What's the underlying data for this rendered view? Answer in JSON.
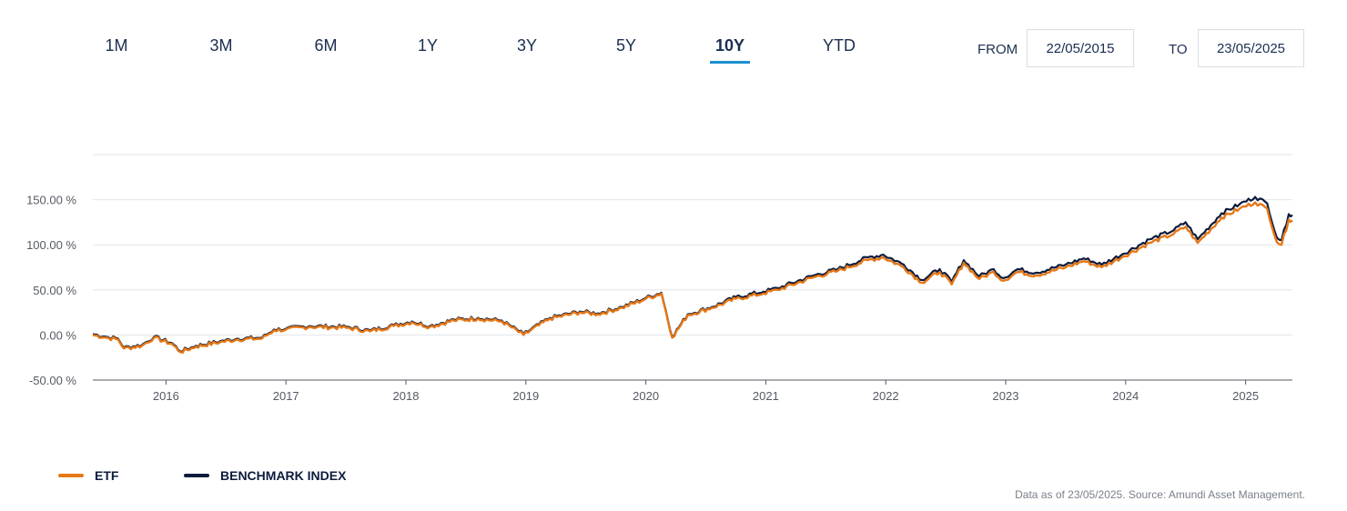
{
  "periods": {
    "tabs": [
      {
        "label": "1M"
      },
      {
        "label": "3M"
      },
      {
        "label": "6M"
      },
      {
        "label": "1Y"
      },
      {
        "label": "3Y"
      },
      {
        "label": "5Y"
      },
      {
        "label": "10Y"
      },
      {
        "label": "YTD"
      }
    ],
    "active_index": 6
  },
  "date_range": {
    "from_label": "FROM",
    "from_value": "22/05/2015",
    "to_label": "TO",
    "to_value": "23/05/2025"
  },
  "colors": {
    "etf": "#e67817",
    "benchmark": "#0d1c3d",
    "active_tab_underline": "#1d8fd2",
    "grid": "#e3e6ea"
  },
  "chart_data": {
    "type": "line",
    "x_ticks": [
      "2016",
      "2017",
      "2018",
      "2019",
      "2020",
      "2021",
      "2022",
      "2023",
      "2024",
      "2025"
    ],
    "y_ticks": [
      "150.00 %",
      "100.00 %",
      "50.00 %",
      "0.00 %",
      "-50.00 %"
    ],
    "ylim": [
      -50,
      200
    ],
    "xlim": [
      2015.39,
      2025.39
    ],
    "grid": true,
    "legend_position": "bottom-left",
    "series": [
      {
        "name": "ETF",
        "points": [
          [
            2015.39,
            0
          ],
          [
            2015.5,
            -3
          ],
          [
            2015.6,
            -5
          ],
          [
            2015.65,
            -15
          ],
          [
            2015.8,
            -12
          ],
          [
            2015.9,
            -3
          ],
          [
            2016.05,
            -10
          ],
          [
            2016.12,
            -19
          ],
          [
            2016.25,
            -13
          ],
          [
            2016.45,
            -8
          ],
          [
            2016.6,
            -5
          ],
          [
            2016.8,
            -4
          ],
          [
            2016.9,
            5
          ],
          [
            2017.0,
            6
          ],
          [
            2017.2,
            9
          ],
          [
            2017.5,
            8
          ],
          [
            2017.7,
            4
          ],
          [
            2017.9,
            10
          ],
          [
            2018.05,
            14
          ],
          [
            2018.2,
            9
          ],
          [
            2018.4,
            16
          ],
          [
            2018.6,
            18
          ],
          [
            2018.8,
            15
          ],
          [
            2018.98,
            0
          ],
          [
            2019.2,
            18
          ],
          [
            2019.45,
            25
          ],
          [
            2019.6,
            23
          ],
          [
            2019.8,
            30
          ],
          [
            2020.0,
            40
          ],
          [
            2020.13,
            46
          ],
          [
            2020.22,
            -3
          ],
          [
            2020.35,
            22
          ],
          [
            2020.55,
            30
          ],
          [
            2020.75,
            40
          ],
          [
            2020.98,
            46
          ],
          [
            2021.1,
            50
          ],
          [
            2021.4,
            64
          ],
          [
            2021.6,
            71
          ],
          [
            2021.85,
            83
          ],
          [
            2021.98,
            86
          ],
          [
            2022.15,
            75
          ],
          [
            2022.3,
            58
          ],
          [
            2022.45,
            70
          ],
          [
            2022.55,
            56
          ],
          [
            2022.65,
            80
          ],
          [
            2022.78,
            62
          ],
          [
            2022.9,
            70
          ],
          [
            2022.98,
            60
          ],
          [
            2023.1,
            70
          ],
          [
            2023.25,
            66
          ],
          [
            2023.5,
            75
          ],
          [
            2023.65,
            82
          ],
          [
            2023.8,
            75
          ],
          [
            2023.98,
            87
          ],
          [
            2024.2,
            102
          ],
          [
            2024.4,
            112
          ],
          [
            2024.5,
            120
          ],
          [
            2024.6,
            102
          ],
          [
            2024.8,
            130
          ],
          [
            2024.95,
            140
          ],
          [
            2025.08,
            147
          ],
          [
            2025.18,
            140
          ],
          [
            2025.26,
            103
          ],
          [
            2025.3,
            100
          ],
          [
            2025.36,
            128
          ],
          [
            2025.39,
            127
          ]
        ]
      },
      {
        "name": "BENCHMARK INDEX",
        "points": [
          [
            2015.39,
            1
          ],
          [
            2015.5,
            -2
          ],
          [
            2015.6,
            -4
          ],
          [
            2015.65,
            -14
          ],
          [
            2015.8,
            -11
          ],
          [
            2015.9,
            -2
          ],
          [
            2016.05,
            -9
          ],
          [
            2016.12,
            -18
          ],
          [
            2016.25,
            -12
          ],
          [
            2016.45,
            -7
          ],
          [
            2016.6,
            -4
          ],
          [
            2016.8,
            -3
          ],
          [
            2016.9,
            6
          ],
          [
            2017.0,
            7
          ],
          [
            2017.2,
            10
          ],
          [
            2017.5,
            9
          ],
          [
            2017.7,
            5
          ],
          [
            2017.9,
            11
          ],
          [
            2018.05,
            15
          ],
          [
            2018.2,
            10
          ],
          [
            2018.4,
            17
          ],
          [
            2018.6,
            19
          ],
          [
            2018.8,
            16
          ],
          [
            2018.98,
            1
          ],
          [
            2019.2,
            19
          ],
          [
            2019.45,
            26
          ],
          [
            2019.6,
            24
          ],
          [
            2019.8,
            31
          ],
          [
            2020.0,
            41
          ],
          [
            2020.13,
            47
          ],
          [
            2020.22,
            -2
          ],
          [
            2020.35,
            23
          ],
          [
            2020.55,
            31
          ],
          [
            2020.75,
            42
          ],
          [
            2020.98,
            48
          ],
          [
            2021.1,
            52
          ],
          [
            2021.4,
            66
          ],
          [
            2021.6,
            73
          ],
          [
            2021.85,
            86
          ],
          [
            2021.98,
            89
          ],
          [
            2022.15,
            78
          ],
          [
            2022.3,
            61
          ],
          [
            2022.45,
            73
          ],
          [
            2022.55,
            59
          ],
          [
            2022.65,
            83
          ],
          [
            2022.78,
            65
          ],
          [
            2022.9,
            73
          ],
          [
            2022.98,
            63
          ],
          [
            2023.1,
            73
          ],
          [
            2023.25,
            69
          ],
          [
            2023.5,
            78
          ],
          [
            2023.65,
            85
          ],
          [
            2023.8,
            78
          ],
          [
            2023.98,
            90
          ],
          [
            2024.2,
            106
          ],
          [
            2024.4,
            116
          ],
          [
            2024.5,
            125
          ],
          [
            2024.6,
            106
          ],
          [
            2024.8,
            135
          ],
          [
            2024.95,
            145
          ],
          [
            2025.08,
            153
          ],
          [
            2025.18,
            146
          ],
          [
            2025.26,
            108
          ],
          [
            2025.3,
            105
          ],
          [
            2025.36,
            134
          ],
          [
            2025.39,
            133
          ]
        ]
      }
    ]
  },
  "legend": {
    "etf_label": "ETF",
    "benchmark_label": "BENCHMARK INDEX"
  },
  "footnote": "Data as of 23/05/2025. Source: Amundi Asset Management."
}
